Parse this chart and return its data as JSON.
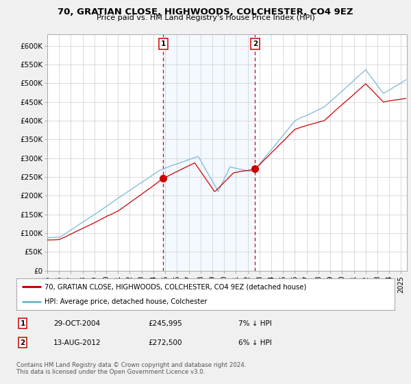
{
  "title": "70, GRATIAN CLOSE, HIGHWOODS, COLCHESTER, CO4 9EZ",
  "subtitle": "Price paid vs. HM Land Registry's House Price Index (HPI)",
  "ylabel_ticks": [
    "£0",
    "£50K",
    "£100K",
    "£150K",
    "£200K",
    "£250K",
    "£300K",
    "£350K",
    "£400K",
    "£450K",
    "£500K",
    "£550K",
    "£600K"
  ],
  "ylim": [
    0,
    630000
  ],
  "xlim_start": 1995.0,
  "xlim_end": 2025.5,
  "sale1_x": 2004.83,
  "sale1_y": 245995,
  "sale1_label": "1",
  "sale2_x": 2012.62,
  "sale2_y": 272500,
  "sale2_label": "2",
  "shade_x1": 2004.83,
  "shade_x2": 2012.62,
  "legend_line1": "70, GRATIAN CLOSE, HIGHWOODS, COLCHESTER, CO4 9EZ (detached house)",
  "legend_line2": "HPI: Average price, detached house, Colchester",
  "table_row1": [
    "1",
    "29-OCT-2004",
    "£245,995",
    "7% ↓ HPI"
  ],
  "table_row2": [
    "2",
    "13-AUG-2012",
    "£272,500",
    "6% ↓ HPI"
  ],
  "footnote": "Contains HM Land Registry data © Crown copyright and database right 2024.\nThis data is licensed under the Open Government Licence v3.0.",
  "hpi_color": "#7ab8d9",
  "price_color": "#cc0000",
  "shade_color": "#ddeeff",
  "background_color": "#f0f0f0",
  "plot_bg_color": "#ffffff",
  "grid_color": "#cccccc",
  "xtick_years": [
    1995,
    1996,
    1997,
    1998,
    1999,
    2000,
    2001,
    2002,
    2003,
    2004,
    2005,
    2006,
    2007,
    2008,
    2009,
    2010,
    2011,
    2012,
    2013,
    2014,
    2015,
    2016,
    2017,
    2018,
    2019,
    2020,
    2021,
    2022,
    2023,
    2024,
    2025
  ]
}
